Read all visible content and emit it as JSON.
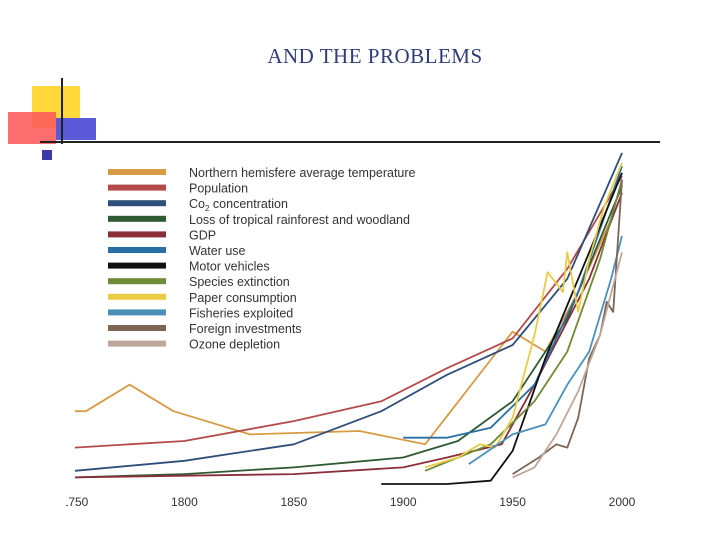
{
  "slide": {
    "title": "AND THE PROBLEMS"
  },
  "chart_data": {
    "type": "line",
    "title": "",
    "xlabel": "",
    "ylabel": "",
    "xlim": [
      1750,
      2000
    ],
    "ylim": [
      0,
      100
    ],
    "x_ticks": [
      "1750",
      "1800",
      "1850",
      "1900",
      "1950",
      "2000"
    ],
    "grid": false,
    "legend_position": "top-left",
    "series": [
      {
        "name": "Northern hemisfere average temperature",
        "color": "#d79b45",
        "x": [
          1750,
          1755,
          1775,
          1795,
          1830,
          1880,
          1910,
          1950,
          1965,
          1980,
          1995
        ],
        "y": [
          22,
          22,
          30,
          22,
          15,
          16,
          12,
          46,
          40,
          58,
          80
        ]
      },
      {
        "name": "Population",
        "color": "#b54a4a",
        "x": [
          1750,
          1800,
          1850,
          1890,
          1920,
          1950,
          1975,
          2000
        ],
        "y": [
          11,
          13,
          19,
          25,
          35,
          44,
          65,
          93
        ]
      },
      {
        "name": "Co2 concentration",
        "color": "#2f4e7a",
        "x": [
          1750,
          1800,
          1850,
          1890,
          1920,
          1950,
          1975,
          2000
        ],
        "y": [
          4,
          7,
          12,
          22,
          33,
          42,
          62,
          100
        ]
      },
      {
        "name": "Loss of tropical rainforest and  woodland",
        "color": "#2f5a33",
        "x": [
          1750,
          1800,
          1850,
          1900,
          1925,
          1950,
          1975,
          2000
        ],
        "y": [
          2,
          3,
          5,
          8,
          13,
          25,
          50,
          90
        ]
      },
      {
        "name": "GDP",
        "color": "#8a2f3a",
        "x": [
          1750,
          1800,
          1850,
          1900,
          1920,
          1945,
          1960,
          1985,
          2000
        ],
        "y": [
          2,
          2.5,
          3,
          5,
          8,
          12,
          30,
          62,
          88
        ]
      },
      {
        "name": "Water use",
        "color": "#2a6fa3",
        "x": [
          1900,
          1920,
          1940,
          1960,
          1980,
          2000
        ],
        "y": [
          14,
          14,
          17,
          30,
          58,
          96
        ]
      },
      {
        "name": "Motor vehicles",
        "color": "#111111",
        "x": [
          1890,
          1920,
          1940,
          1950,
          1965,
          1985,
          2000
        ],
        "y": [
          0,
          0,
          1,
          10,
          38,
          70,
          94
        ]
      },
      {
        "name": "Species extinction",
        "color": "#6f8a35",
        "x": [
          1910,
          1940,
          1960,
          1975,
          1990,
          2000
        ],
        "y": [
          4,
          12,
          25,
          40,
          68,
          92
        ]
      },
      {
        "name": "Paper consumption",
        "color": "#eacb44",
        "x": [
          1910,
          1925,
          1935,
          1942,
          1950,
          1960,
          1966,
          1973,
          1975,
          1980,
          1985,
          1992,
          2000
        ],
        "y": [
          5,
          8,
          12,
          11,
          20,
          45,
          64,
          58,
          70,
          52,
          68,
          84,
          97
        ]
      },
      {
        "name": "Fisheries exploited",
        "color": "#4b8fba",
        "x": [
          1930,
          1950,
          1965,
          1975,
          1985,
          1995,
          2000
        ],
        "y": [
          6,
          15,
          18,
          30,
          40,
          62,
          75
        ]
      },
      {
        "name": "Foreign investments",
        "color": "#7d6555",
        "x": [
          1950,
          1962,
          1966,
          1970,
          1975,
          1980,
          1985,
          1990,
          1993,
          1996,
          2000
        ],
        "y": [
          3,
          8,
          10,
          12,
          11,
          20,
          38,
          45,
          55,
          52,
          92
        ]
      },
      {
        "name": "Ozone depletion",
        "color": "#bda79c",
        "x": [
          1950,
          1960,
          1970,
          1980,
          1990,
          2000
        ],
        "y": [
          2,
          5,
          15,
          28,
          45,
          70
        ]
      }
    ]
  }
}
